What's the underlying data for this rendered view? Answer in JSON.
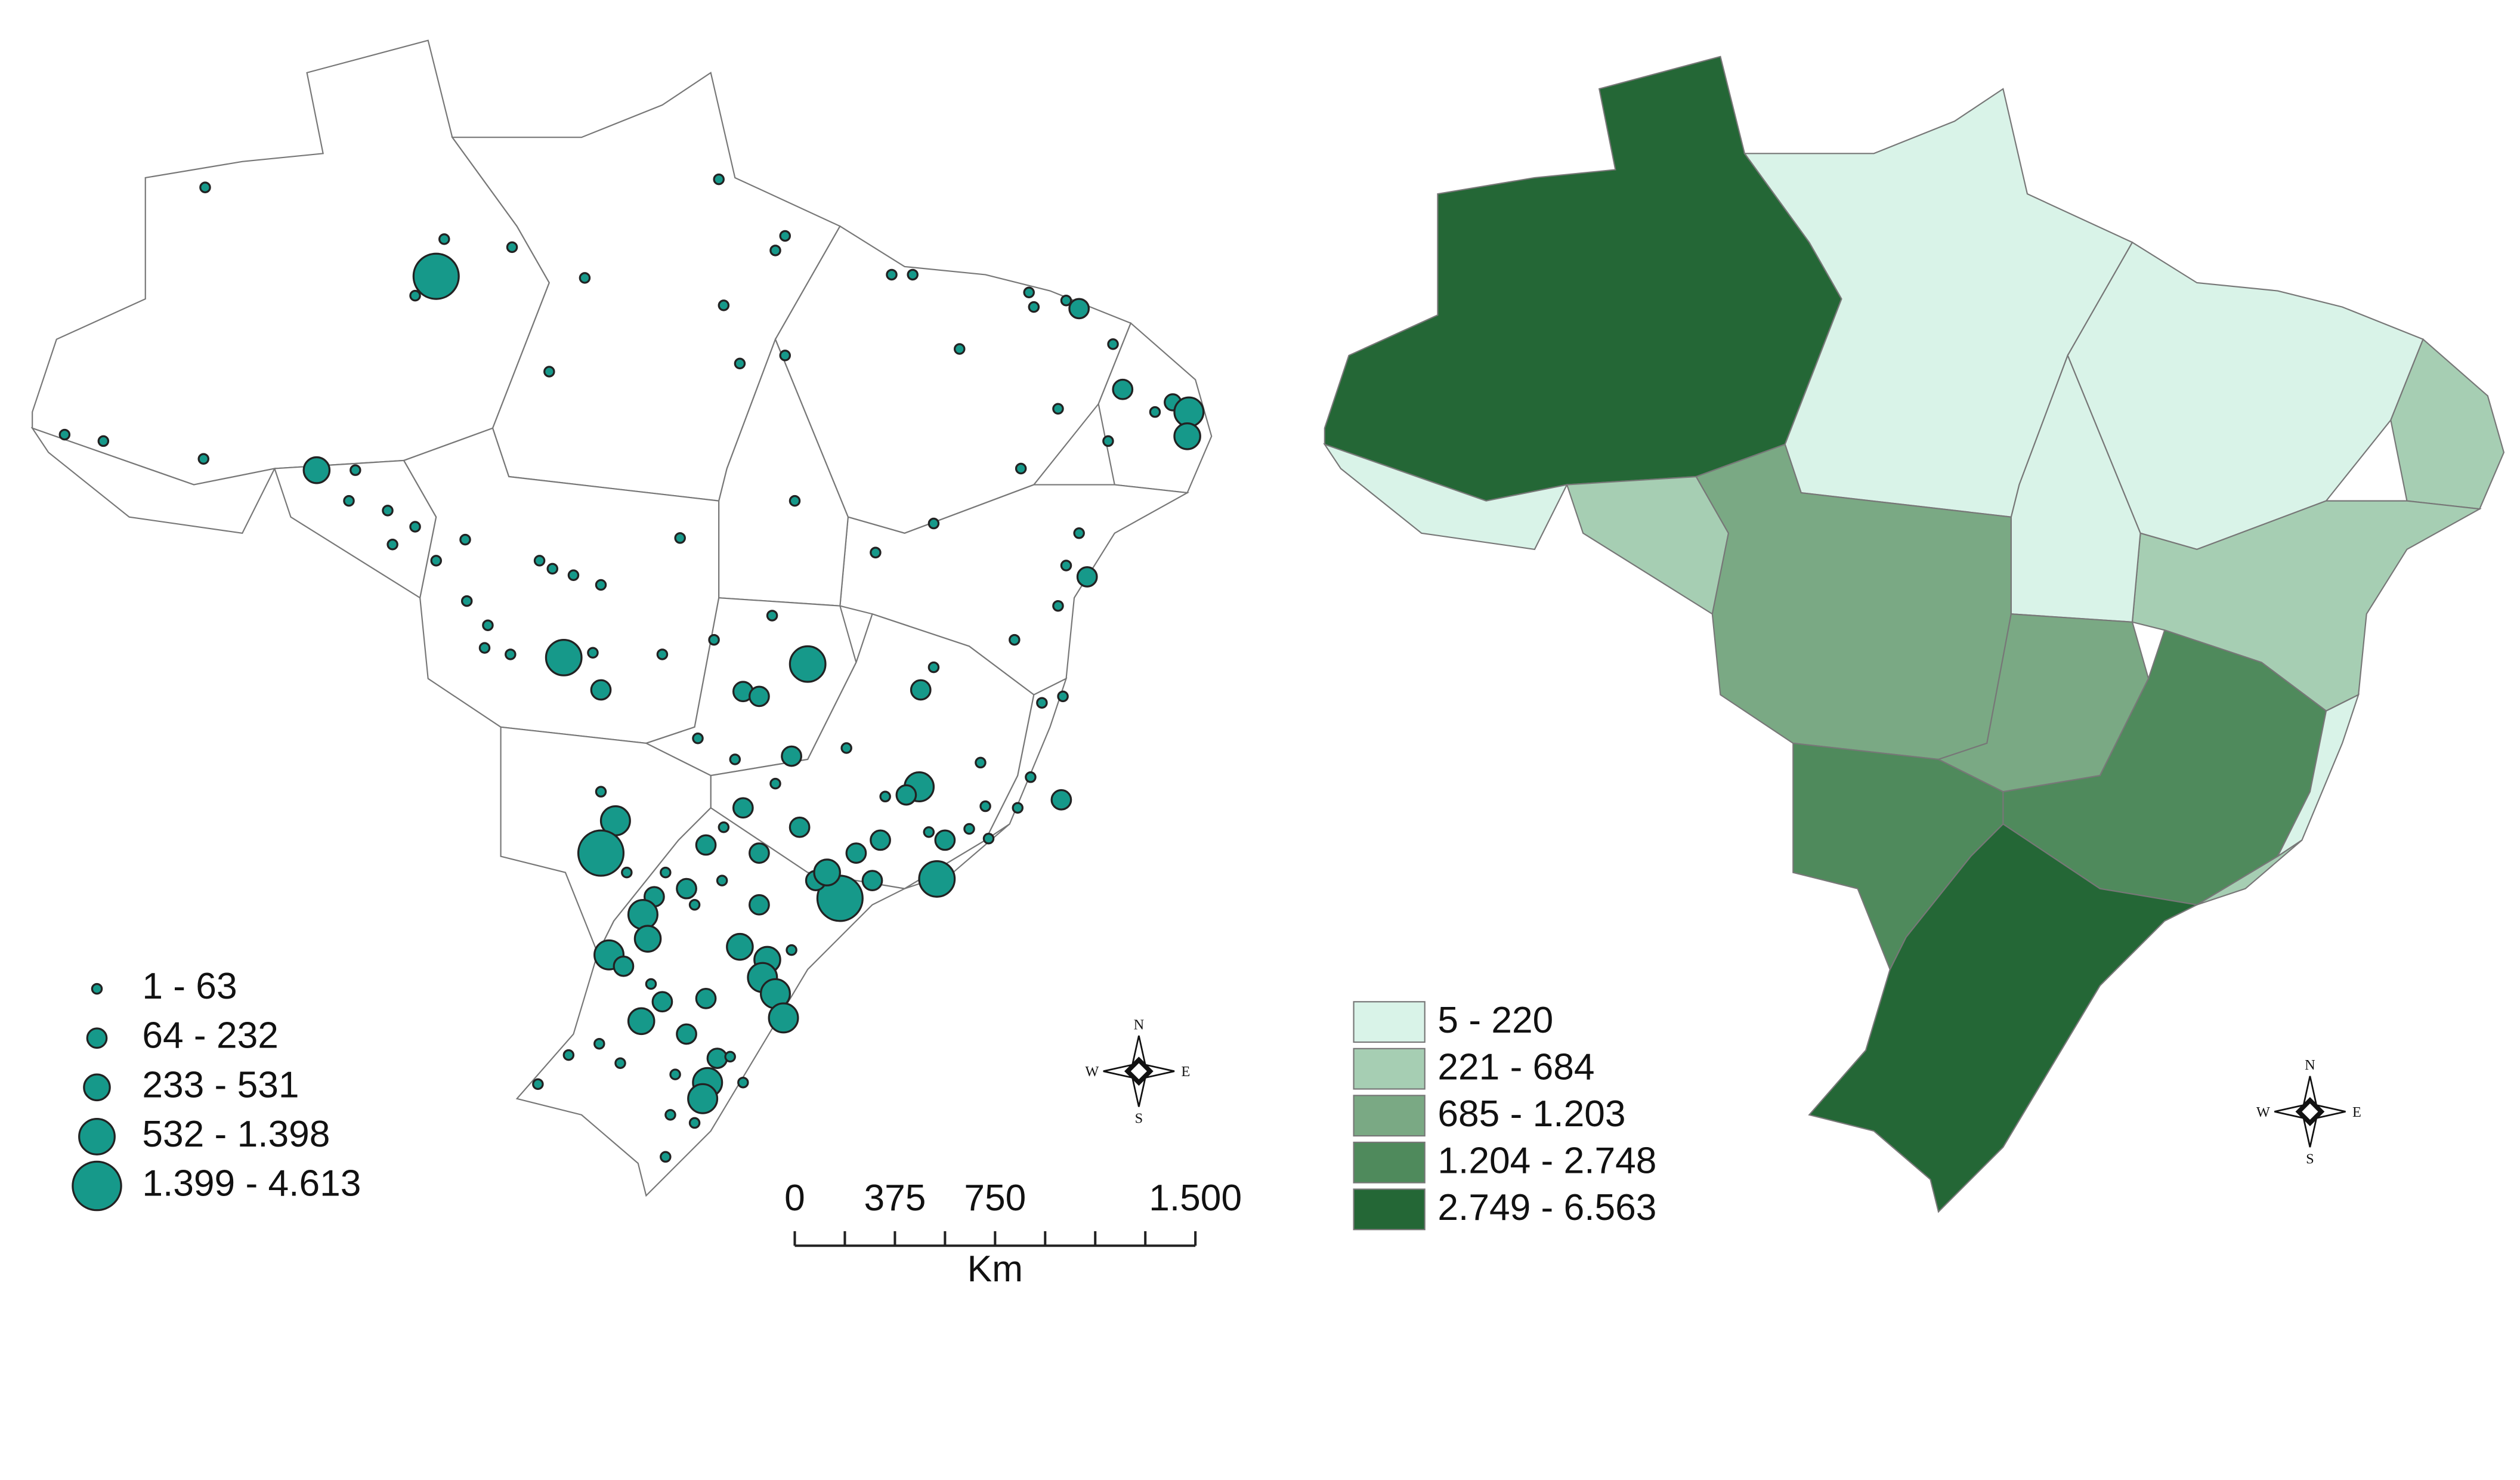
{
  "left_map": {
    "dot_color": "#16998a",
    "legend": [
      {
        "label": "1 - 63"
      },
      {
        "label": "64 - 232"
      },
      {
        "label": "233 - 531"
      },
      {
        "label": "532 - 1.398"
      },
      {
        "label": "1.399 - 4.613"
      }
    ]
  },
  "right_map": {
    "legend": [
      {
        "label": "5 - 220",
        "color": "#d9f3e8"
      },
      {
        "label": "221 - 684",
        "color": "#a6ceb3"
      },
      {
        "label": "685 - 1.203",
        "color": "#7aa984"
      },
      {
        "label": "1.204 - 2.748",
        "color": "#4f8a5c"
      },
      {
        "label": "2.749 - 6.563",
        "color": "#246736"
      }
    ]
  },
  "scale_bar": {
    "labels": [
      "0",
      "375",
      "750",
      "1.500"
    ],
    "unit": "Km"
  },
  "compass": {
    "north": "N",
    "south": "S",
    "east": "E",
    "west": "W"
  }
}
